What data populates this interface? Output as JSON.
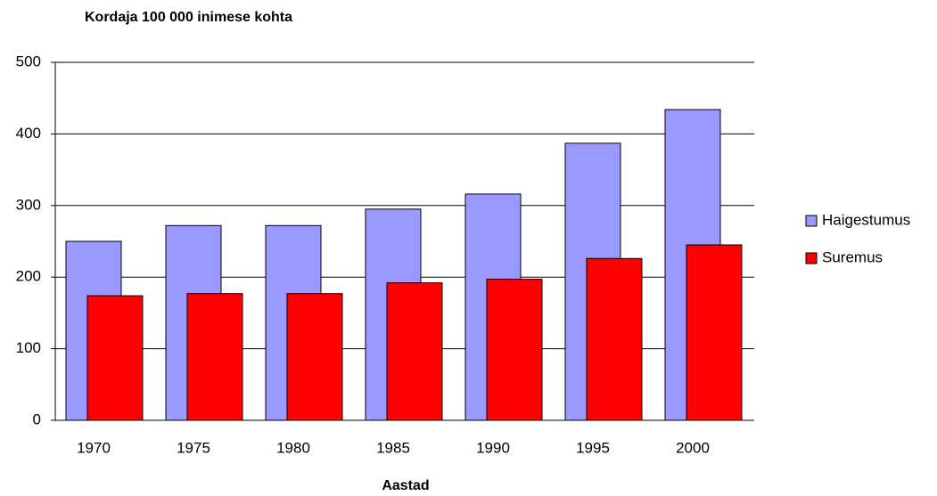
{
  "chart_data": {
    "type": "bar",
    "title": "Kordaja 100 000 inimese kohta",
    "x_label": "Aastad",
    "categories": [
      "1970",
      "1975",
      "1980",
      "1985",
      "1990",
      "1995",
      "2000"
    ],
    "series": [
      {
        "name": "Haigestumus",
        "color": "#9999ff",
        "values": [
          250,
          272,
          272,
          295,
          316,
          387,
          434
        ]
      },
      {
        "name": "Suremus",
        "color": "#ff0000",
        "values": [
          174,
          177,
          177,
          192,
          197,
          226,
          245
        ]
      }
    ],
    "ylim": [
      0,
      500
    ],
    "yticks": [
      0,
      100,
      200,
      300,
      400,
      500
    ],
    "grid": true,
    "legend": "right"
  }
}
